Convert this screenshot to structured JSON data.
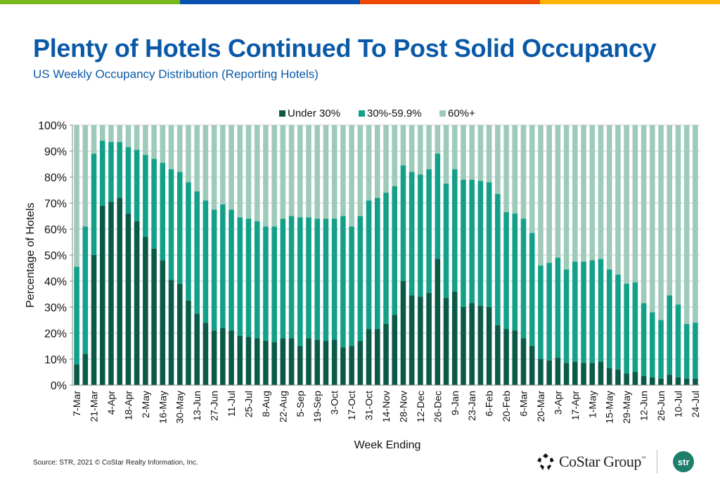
{
  "brand_colors": [
    "#78b81e",
    "#0a52b0",
    "#ee4a05",
    "#ffb400"
  ],
  "header": {
    "title": "Plenty of Hotels Continued To Post Solid Occupancy",
    "subtitle": "US Weekly Occupancy Distribution (Reporting Hotels)"
  },
  "footer": {
    "source": "Source: STR, 2021 © CoStar Realty Information, Inc.",
    "costar_logo_text": "CoStar Group",
    "costar_tm": "™",
    "str_logo_text": "str"
  },
  "chart_data": {
    "type": "bar",
    "stacked": true,
    "title": "",
    "xlabel": "Week Ending",
    "ylabel": "Percentage of Hotels",
    "ylim": [
      0,
      100
    ],
    "y_ticks": [
      0,
      10,
      20,
      30,
      40,
      50,
      60,
      70,
      80,
      90,
      100
    ],
    "y_tick_format": "percent",
    "grid": true,
    "legend_position": "top-center",
    "x_tick_labels": [
      "7-Mar",
      "21-Mar",
      "4-Apr",
      "18-Apr",
      "2-May",
      "16-May",
      "30-May",
      "13-Jun",
      "27-Jun",
      "11-Jul",
      "25-Jul",
      "8-Aug",
      "22-Aug",
      "5-Sep",
      "19-Sep",
      "3-Oct",
      "17-Oct",
      "31-Oct",
      "14-Nov",
      "28-Nov",
      "12-Dec",
      "26-Dec",
      "9-Jan",
      "23-Jan",
      "6-Feb",
      "20-Feb",
      "6-Mar",
      "20-Mar",
      "3-Apr",
      "17-Apr",
      "1-May",
      "15-May",
      "29-May",
      "12-Jun",
      "26-Jun",
      "10-Jul",
      "24-Jul"
    ],
    "series": [
      {
        "name": "Under 30%",
        "color": "#0b5a48",
        "values": [
          8,
          12,
          50,
          69,
          70.5,
          72,
          66,
          63,
          57,
          52.5,
          48,
          40.5,
          39,
          32.5,
          27.5,
          24,
          21,
          22,
          21,
          19,
          18.5,
          18,
          17,
          16.5,
          18,
          18,
          15,
          18,
          17.5,
          17,
          17.5,
          14.5,
          15,
          17,
          21.5,
          21.5,
          23.5,
          27,
          40,
          34.5,
          34,
          35.5,
          48.5,
          33.5,
          36,
          30,
          31.5,
          30.5,
          30,
          23,
          21.5,
          21,
          18,
          15,
          10,
          9.5,
          10.5,
          8.5,
          9,
          8.5,
          8.5,
          9,
          6.5,
          6,
          4.5,
          5,
          3.5,
          3,
          2.5,
          4,
          3,
          2.5,
          2.5
        ]
      },
      {
        "name": "30%-59.9%",
        "color": "#13a089",
        "values": [
          37.5,
          49,
          39,
          25,
          23,
          21.5,
          25.5,
          27.5,
          31.5,
          34.5,
          37.5,
          42.5,
          43,
          45.5,
          47,
          47,
          46.5,
          47.5,
          46.5,
          45.5,
          45.5,
          45,
          44,
          44.5,
          46,
          47,
          49.5,
          46.5,
          46.5,
          47,
          46.5,
          50.5,
          46,
          48,
          49.5,
          50.5,
          50.5,
          49.5,
          44.5,
          47.5,
          47,
          47.5,
          40.5,
          44,
          47,
          49,
          47.5,
          48,
          48,
          50.5,
          45,
          45,
          46,
          43.5,
          36,
          37.5,
          38.5,
          36,
          38.5,
          39,
          39.5,
          39.5,
          38,
          36.5,
          34.5,
          34.5,
          28,
          25,
          22.5,
          30.5,
          28,
          21,
          21.5
        ]
      },
      {
        "name": "60%+",
        "color": "#9ecab9",
        "values": []
      }
    ],
    "week_labels_every": 2,
    "bar_count": 73
  }
}
